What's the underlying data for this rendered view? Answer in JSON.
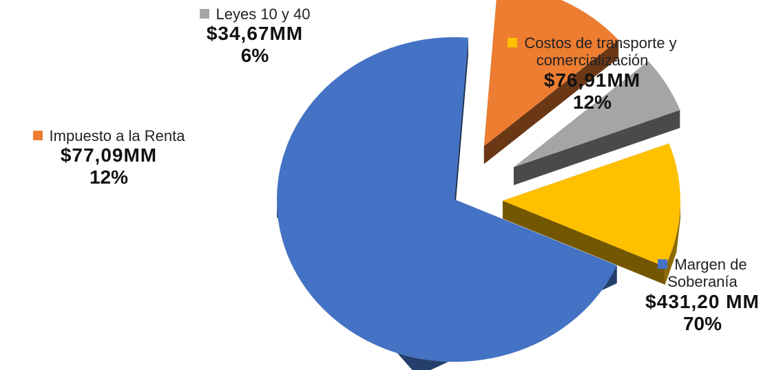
{
  "chart_data": {
    "type": "pie",
    "title": "",
    "slices": [
      {
        "name": "Margen de Soberanía",
        "name_lines": [
          "Margen de",
          "Soberanía"
        ],
        "value_label": "$431,20 MM",
        "percent_label": "70%",
        "value": 431.2,
        "color": "#4472C4",
        "exploded": false
      },
      {
        "name": "Impuesto a la Renta",
        "name_lines": [
          "Impuesto a la Renta"
        ],
        "value_label": "$77,09MM",
        "percent_label": "12%",
        "value": 77.09,
        "color": "#ED7D31",
        "exploded": true
      },
      {
        "name": "Leyes 10 y 40",
        "name_lines": [
          "Leyes 10 y 40"
        ],
        "value_label": "$34,67MM",
        "percent_label": "6%",
        "value": 34.67,
        "color": "#A5A5A5",
        "exploded": true
      },
      {
        "name": "Costos de transporte y comercialización",
        "name_lines": [
          "Costos de transporte y",
          "comercialización"
        ],
        "value_label": "$76,91MM",
        "percent_label": "12%",
        "value": 76.91,
        "color": "#FFC000",
        "exploded": true
      }
    ],
    "legend": "inline"
  }
}
